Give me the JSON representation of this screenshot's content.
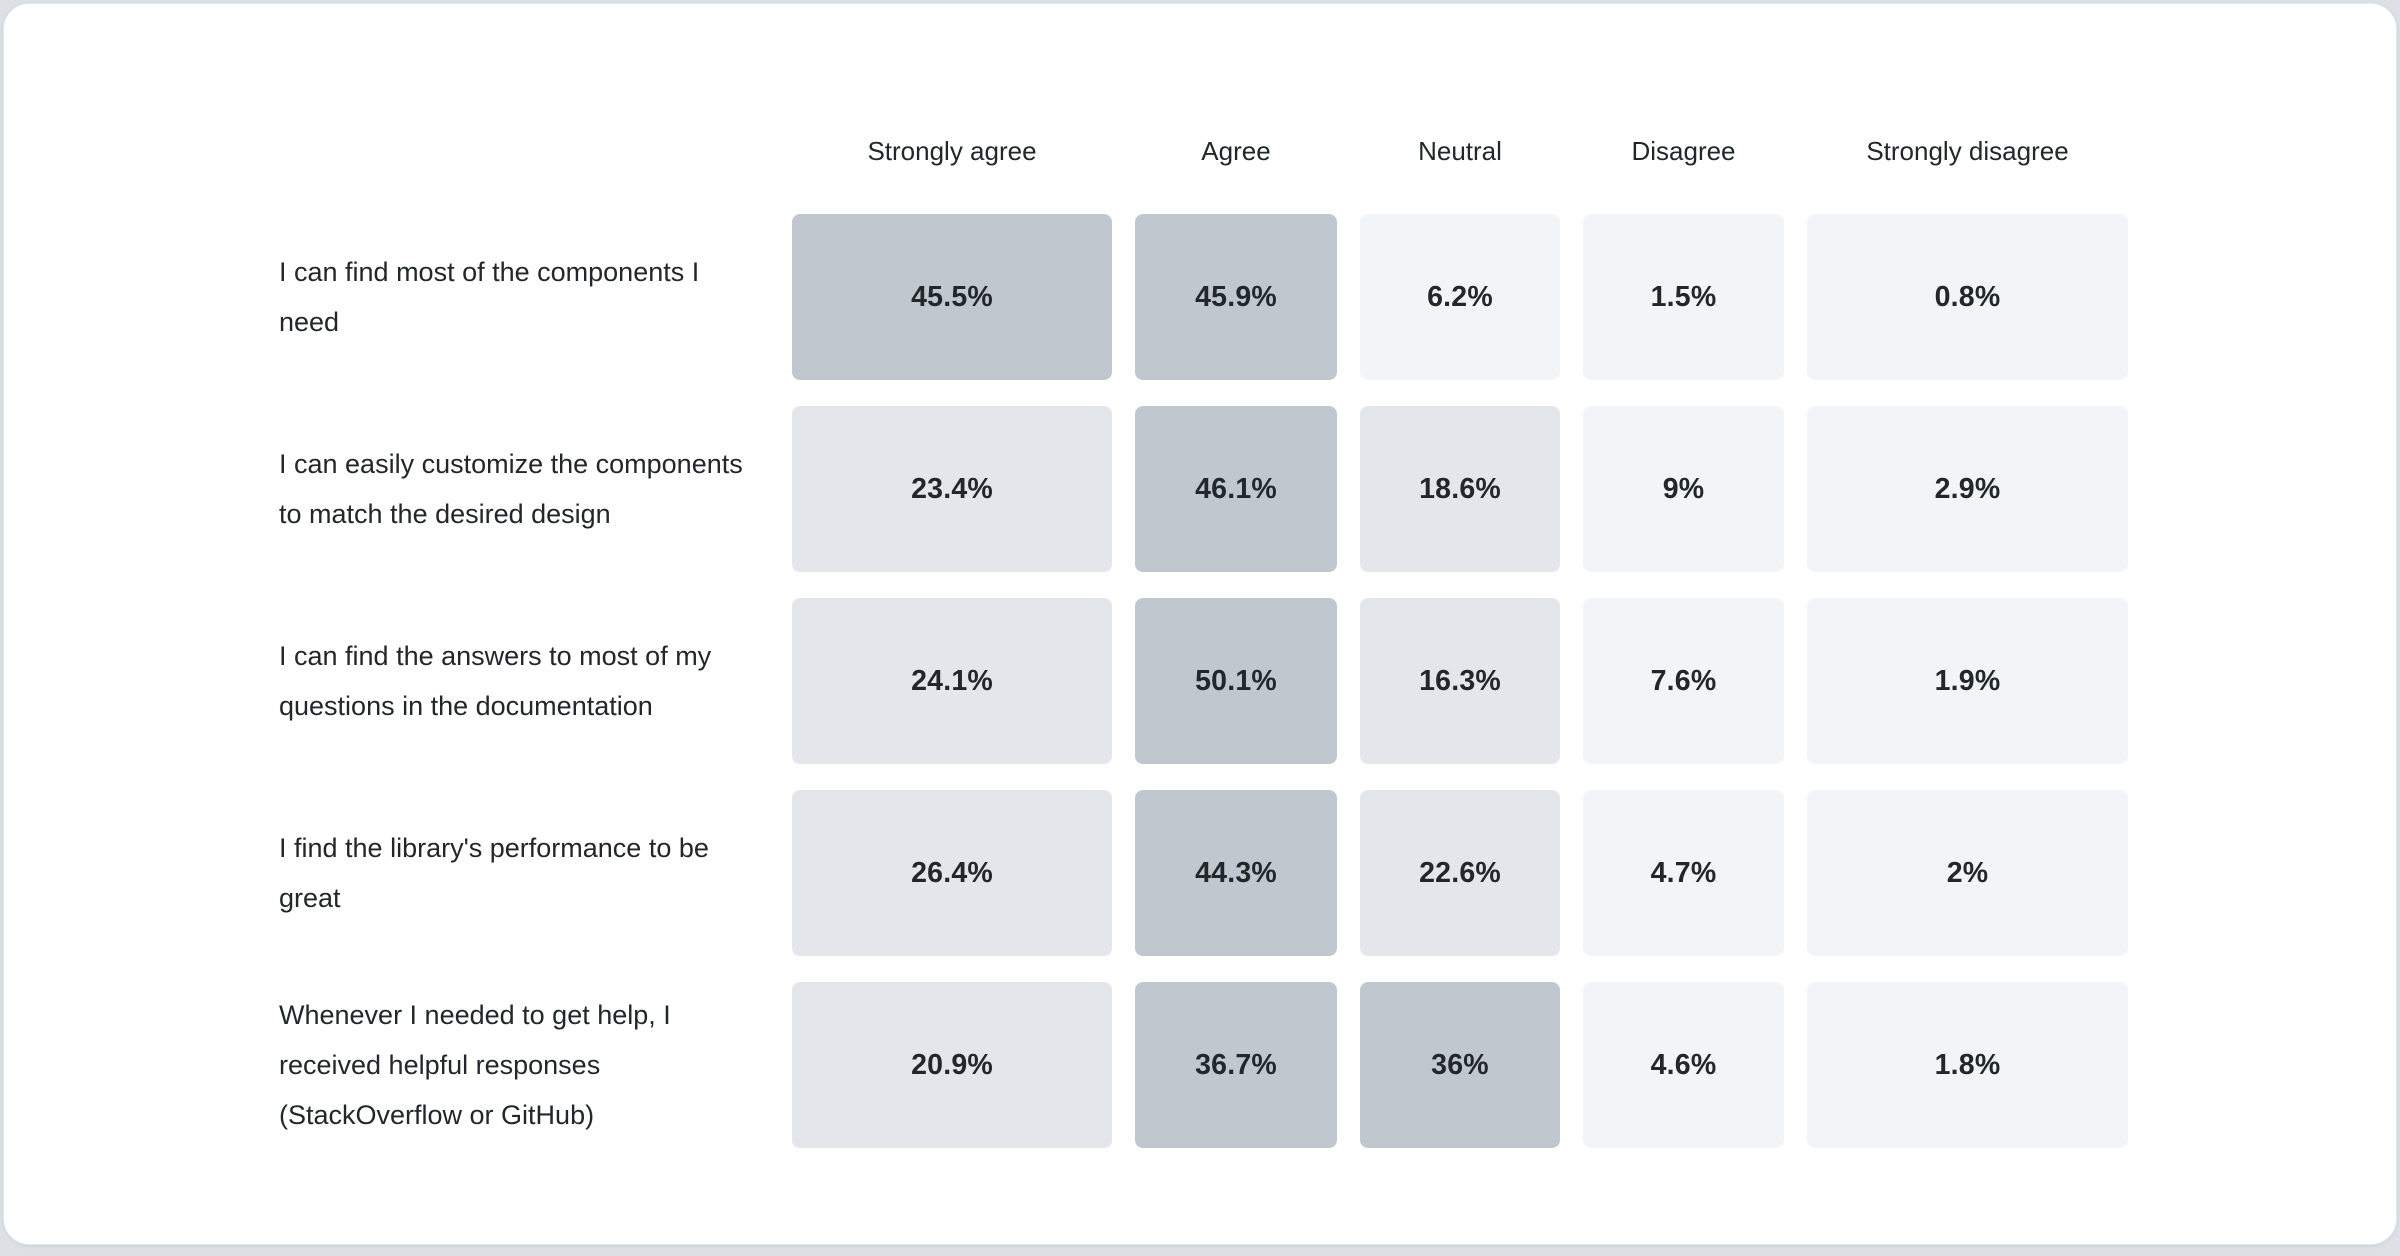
{
  "page": {
    "background_color": "#dde1e6",
    "card_background_color": "#ffffff",
    "text_color": "#21272a"
  },
  "chart_data": {
    "type": "heatmap",
    "title": "",
    "legend_position": "none",
    "grid": false,
    "columns": [
      "Strongly agree",
      "Agree",
      "Neutral",
      "Disagree",
      "Strongly disagree"
    ],
    "rows": [
      {
        "label": "I can find most of the components I need",
        "values": [
          45.5,
          45.9,
          6.2,
          1.5,
          0.8
        ],
        "labels": [
          "45.5%",
          "45.9%",
          "6.2%",
          "1.5%",
          "0.8%"
        ]
      },
      {
        "label": "I can easily customize the components to match the desired design",
        "values": [
          23.4,
          46.1,
          18.6,
          9,
          2.9
        ],
        "labels": [
          "23.4%",
          "46.1%",
          "18.6%",
          "9%",
          "2.9%"
        ]
      },
      {
        "label": "I can find the answers to most of my questions in the documentation",
        "values": [
          24.1,
          50.1,
          16.3,
          7.6,
          1.9
        ],
        "labels": [
          "24.1%",
          "50.1%",
          "16.3%",
          "7.6%",
          "1.9%"
        ]
      },
      {
        "label": "I find the library's performance to be great",
        "values": [
          26.4,
          44.3,
          22.6,
          4.7,
          2
        ],
        "labels": [
          "26.4%",
          "44.3%",
          "22.6%",
          "4.7%",
          "2%"
        ]
      },
      {
        "label": "Whenever I needed to get help, I received helpful responses (StackOverflow or GitHub)",
        "values": [
          20.9,
          36.7,
          36,
          4.6,
          1.8
        ],
        "labels": [
          "20.9%",
          "36.7%",
          "36%",
          "4.6%",
          "1.8%"
        ]
      }
    ],
    "color_scale": {
      "high": "#c1c7ce",
      "medium": "#e3e6ea",
      "low": "#f2f5f7"
    },
    "thresholds": {
      "high": 30,
      "medium": 15
    }
  }
}
